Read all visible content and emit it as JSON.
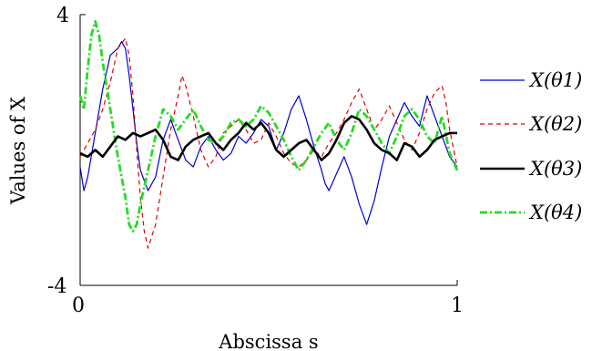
{
  "chart_data": {
    "type": "line",
    "xlabel": "Abscissa s",
    "ylabel": "Values of X",
    "xlim": [
      0,
      1
    ],
    "ylim": [
      -4,
      4
    ],
    "x_tick_labels": [
      "0",
      "1"
    ],
    "y_tick_labels": [
      "4",
      "-4"
    ],
    "grid": false,
    "legend_position": "right",
    "legend": [
      "X(θ1)",
      "X(θ2)",
      "X(θ3)",
      "X(θ4)"
    ],
    "series": [
      {
        "name": "X(θ1)",
        "color": "#0000cc",
        "dash": "solid",
        "x": [
          0.0,
          0.01,
          0.02,
          0.04,
          0.06,
          0.08,
          0.1,
          0.11,
          0.12,
          0.13,
          0.14,
          0.15,
          0.16,
          0.18,
          0.2,
          0.22,
          0.24,
          0.26,
          0.28,
          0.3,
          0.32,
          0.34,
          0.36,
          0.38,
          0.4,
          0.42,
          0.44,
          0.46,
          0.48,
          0.5,
          0.52,
          0.54,
          0.56,
          0.58,
          0.6,
          0.62,
          0.64,
          0.65,
          0.66,
          0.68,
          0.7,
          0.72,
          0.74,
          0.76,
          0.78,
          0.8,
          0.82,
          0.84,
          0.86,
          0.88,
          0.9,
          0.92,
          0.94,
          0.96,
          0.98,
          1.0
        ],
        "y": [
          -0.5,
          -1.2,
          -0.8,
          0.5,
          1.8,
          2.8,
          3.0,
          3.2,
          3.0,
          2.2,
          1.2,
          0.2,
          -0.6,
          -1.2,
          -0.8,
          0.3,
          0.9,
          0.3,
          -0.3,
          -0.5,
          0.1,
          0.4,
          0.0,
          -0.3,
          -0.1,
          0.4,
          0.2,
          0.5,
          0.9,
          0.7,
          0.0,
          0.5,
          1.2,
          1.6,
          0.9,
          0.1,
          -0.6,
          -1.0,
          -1.2,
          -0.7,
          -0.2,
          -0.8,
          -1.6,
          -2.2,
          -1.5,
          -0.5,
          0.4,
          0.9,
          1.4,
          1.0,
          0.7,
          1.6,
          1.0,
          0.4,
          -0.2,
          -0.5
        ]
      },
      {
        "name": "X(θ2)",
        "color": "#dd0000",
        "dash": "dashed",
        "x": [
          0.0,
          0.02,
          0.04,
          0.06,
          0.08,
          0.1,
          0.12,
          0.13,
          0.14,
          0.15,
          0.16,
          0.17,
          0.18,
          0.2,
          0.22,
          0.24,
          0.26,
          0.27,
          0.28,
          0.3,
          0.32,
          0.34,
          0.36,
          0.38,
          0.4,
          0.42,
          0.44,
          0.46,
          0.48,
          0.5,
          0.52,
          0.54,
          0.56,
          0.58,
          0.6,
          0.62,
          0.64,
          0.66,
          0.68,
          0.7,
          0.72,
          0.74,
          0.76,
          0.78,
          0.8,
          0.82,
          0.84,
          0.86,
          0.88,
          0.9,
          0.92,
          0.94,
          0.96,
          0.97,
          0.98,
          1.0
        ],
        "y": [
          -0.2,
          0.2,
          0.6,
          1.2,
          2.0,
          3.0,
          3.3,
          2.8,
          1.6,
          0.0,
          -1.4,
          -2.4,
          -2.9,
          -2.2,
          -0.8,
          0.6,
          1.6,
          2.2,
          1.9,
          1.0,
          0.0,
          -0.5,
          -0.2,
          0.5,
          0.7,
          0.9,
          0.6,
          0.2,
          0.3,
          0.8,
          0.4,
          -0.1,
          -0.4,
          -0.5,
          -0.3,
          0.0,
          -0.2,
          0.2,
          0.5,
          0.9,
          1.4,
          1.8,
          1.2,
          0.6,
          0.9,
          1.3,
          0.8,
          0.3,
          0.0,
          0.5,
          1.2,
          1.7,
          1.9,
          1.4,
          0.6,
          -0.5
        ]
      },
      {
        "name": "X(θ3)",
        "color": "#000000",
        "dash": "solid",
        "x": [
          0.0,
          0.02,
          0.04,
          0.06,
          0.08,
          0.1,
          0.12,
          0.14,
          0.16,
          0.18,
          0.2,
          0.22,
          0.24,
          0.26,
          0.28,
          0.3,
          0.32,
          0.34,
          0.36,
          0.38,
          0.4,
          0.42,
          0.44,
          0.46,
          0.48,
          0.5,
          0.52,
          0.54,
          0.56,
          0.58,
          0.6,
          0.62,
          0.64,
          0.66,
          0.68,
          0.7,
          0.72,
          0.74,
          0.76,
          0.78,
          0.8,
          0.82,
          0.84,
          0.86,
          0.88,
          0.9,
          0.92,
          0.94,
          0.96,
          0.98,
          1.0
        ],
        "y": [
          -0.1,
          -0.2,
          0.0,
          -0.2,
          0.1,
          0.4,
          0.3,
          0.5,
          0.4,
          0.5,
          0.6,
          0.3,
          -0.2,
          -0.3,
          0.1,
          0.3,
          0.4,
          0.5,
          0.2,
          0.0,
          0.3,
          0.5,
          0.8,
          0.6,
          0.8,
          0.5,
          0.0,
          -0.2,
          0.0,
          0.2,
          0.3,
          0.0,
          -0.3,
          -0.1,
          0.3,
          0.8,
          1.0,
          0.9,
          0.6,
          0.2,
          0.0,
          -0.1,
          -0.3,
          0.2,
          0.1,
          -0.2,
          0.0,
          0.3,
          0.4,
          0.5,
          0.5
        ]
      },
      {
        "name": "X(θ4)",
        "color": "#22dd22",
        "dash": "dashdot",
        "x": [
          0.0,
          0.01,
          0.02,
          0.03,
          0.04,
          0.05,
          0.06,
          0.08,
          0.1,
          0.12,
          0.13,
          0.14,
          0.15,
          0.16,
          0.18,
          0.2,
          0.22,
          0.24,
          0.26,
          0.28,
          0.3,
          0.32,
          0.34,
          0.36,
          0.38,
          0.4,
          0.42,
          0.44,
          0.46,
          0.48,
          0.5,
          0.52,
          0.54,
          0.56,
          0.58,
          0.6,
          0.62,
          0.64,
          0.66,
          0.68,
          0.7,
          0.72,
          0.74,
          0.76,
          0.78,
          0.8,
          0.82,
          0.84,
          0.86,
          0.88,
          0.9,
          0.92,
          0.94,
          0.96,
          0.98,
          1.0
        ],
        "y": [
          1.6,
          1.2,
          2.4,
          3.4,
          3.8,
          3.4,
          2.6,
          1.2,
          -0.2,
          -1.4,
          -2.2,
          -2.4,
          -2.2,
          -1.6,
          -0.6,
          0.4,
          1.2,
          1.0,
          0.6,
          0.9,
          1.2,
          0.7,
          0.3,
          0.2,
          0.4,
          0.8,
          0.9,
          0.7,
          0.9,
          1.3,
          1.1,
          0.7,
          0.3,
          -0.2,
          -0.6,
          -0.3,
          0.1,
          0.5,
          0.8,
          0.3,
          0.0,
          0.5,
          1.2,
          1.0,
          0.6,
          0.2,
          -0.1,
          0.4,
          1.0,
          1.2,
          0.9,
          0.4,
          0.2,
          1.0,
          -0.1,
          -0.6
        ]
      }
    ]
  }
}
